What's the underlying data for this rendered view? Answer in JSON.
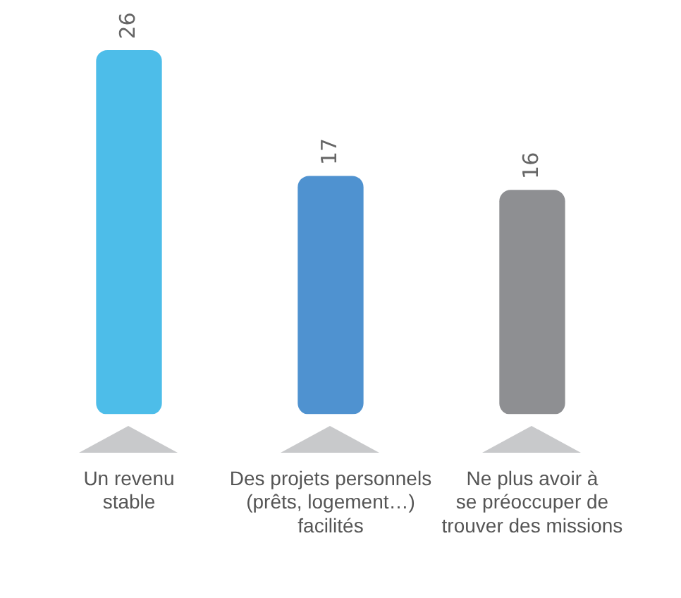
{
  "chart_data": {
    "type": "bar",
    "categories": [
      "Un revenu\nstable",
      "Des projets personnels\n(prêts, logement…)\nfacilités",
      "Ne plus avoir à\nse préoccuper de\ntrouver des missions"
    ],
    "values": [
      26,
      17,
      16
    ],
    "colors": [
      "#4dbde9",
      "#4f92d0",
      "#8e8f92"
    ],
    "data_labels": true,
    "grid": false
  }
}
